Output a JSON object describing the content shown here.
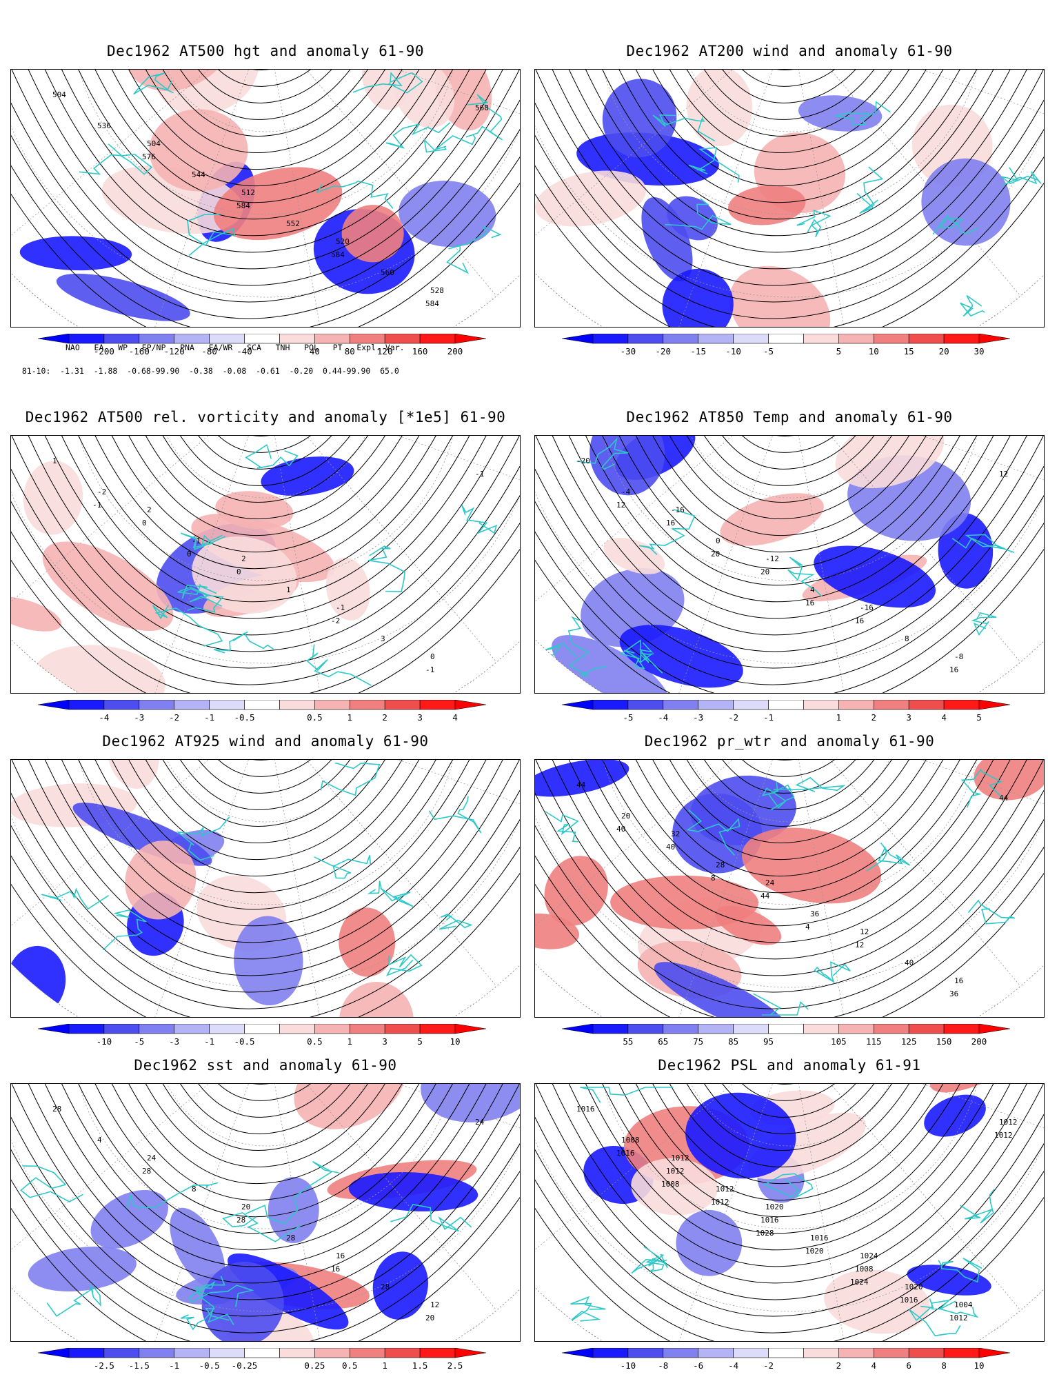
{
  "panels": [
    {
      "title": "Dec1962 AT500 hgt and anomaly 61-90",
      "colorbar": [
        "-200",
        "-160",
        "-120",
        "-80",
        "-40",
        "40",
        "80",
        "120",
        "160",
        "200"
      ],
      "contour_labels": [
        "504",
        "504",
        "512",
        "520",
        "528",
        "536",
        "544",
        "552",
        "560",
        "568",
        "576",
        "584",
        "584",
        "584"
      ],
      "teleconnection": {
        "header": [
          "NAO",
          "EA",
          "WP",
          "EP/NP",
          "PNA",
          "EA/WR",
          "SCA",
          "TNH",
          "POL",
          "PT",
          "Expl. Var."
        ],
        "row_label": "81-10:",
        "values": [
          "-1.31",
          "-1.88",
          "-0.68-99.90",
          "-0.38",
          "-0.08",
          "-0.61",
          "-0.20",
          "0.44-99.90",
          "65.0"
        ]
      }
    },
    {
      "title": "Dec1962 AT200 wind and anomaly 61-90",
      "colorbar": [
        "-30",
        "-20",
        "-15",
        "-10",
        "-5",
        "5",
        "10",
        "15",
        "20",
        "30"
      ],
      "contour_labels": []
    },
    {
      "title": "Dec1962 AT500 rel. vorticity and anomaly [*1e5] 61-90",
      "colorbar": [
        "-4",
        "-3",
        "-2",
        "-1",
        "-0.5",
        "0.5",
        "1",
        "2",
        "3",
        "4"
      ],
      "contour_labels": [
        "1",
        "2",
        "2",
        "-1",
        "0",
        "-2",
        "-1",
        "1",
        "3",
        "-1",
        "0",
        "0",
        "-2",
        "-1",
        "-1",
        "0"
      ]
    },
    {
      "title": "Dec1962 AT850 Temp and anomaly 61-90",
      "colorbar": [
        "-5",
        "-4",
        "-3",
        "-2",
        "-1",
        "1",
        "2",
        "3",
        "4",
        "5"
      ],
      "contour_labels": [
        "-20",
        "-16",
        "-12",
        "-16",
        "-8",
        "-4",
        "0",
        "4",
        "8",
        "12",
        "16",
        "20",
        "16",
        "16",
        "12",
        "20",
        "16"
      ]
    },
    {
      "title": "Dec1962 AT925 wind and anomaly 61-90",
      "colorbar": [
        "-10",
        "-5",
        "-3",
        "-1",
        "-0.5",
        "0.5",
        "1",
        "3",
        "5",
        "10"
      ],
      "contour_labels": []
    },
    {
      "title": "Dec1962 pr_wtr and anomaly 61-90",
      "colorbar": [
        "55",
        "65",
        "75",
        "85",
        "95",
        "105",
        "115",
        "125",
        "150",
        "200"
      ],
      "contour_labels": [
        "44",
        "32",
        "24",
        "12",
        "16",
        "20",
        "28",
        "36",
        "40",
        "44",
        "40",
        "44",
        "12",
        "36",
        "40",
        "8",
        "4"
      ]
    },
    {
      "title": "Dec1962 sst and anomaly 61-90",
      "colorbar": [
        "-2.5",
        "-1.5",
        "-1",
        "-0.5",
        "-0.25",
        "0.25",
        "0.5",
        "1",
        "1.5",
        "2.5"
      ],
      "contour_labels": [
        "28",
        "24",
        "20",
        "16",
        "12",
        "4",
        "8",
        "28",
        "28",
        "24",
        "28",
        "28",
        "16",
        "20"
      ]
    },
    {
      "title": "Dec1962 PSL and anomaly 61-91",
      "colorbar": [
        "-10",
        "-8",
        "-6",
        "-4",
        "-2",
        "2",
        "4",
        "6",
        "8",
        "10"
      ],
      "contour_labels": [
        "1016",
        "1012",
        "1020",
        "1024",
        "1004",
        "1008",
        "1012",
        "1016",
        "1020",
        "1012",
        "1012",
        "1016",
        "1008",
        "1012",
        "1016",
        "1012",
        "1020",
        "1016",
        "1012",
        "1008",
        "1028",
        "1024"
      ]
    }
  ],
  "colors": {
    "coast": "#2ec8c8",
    "contour": "#000000",
    "neg": [
      "#1a1aff",
      "#4d4df0",
      "#8080f0",
      "#b3b3f5",
      "#dcdcfa"
    ],
    "pos": [
      "#fadcdc",
      "#f5b3b3",
      "#f08080",
      "#f04d4d",
      "#ff1a1a"
    ]
  }
}
